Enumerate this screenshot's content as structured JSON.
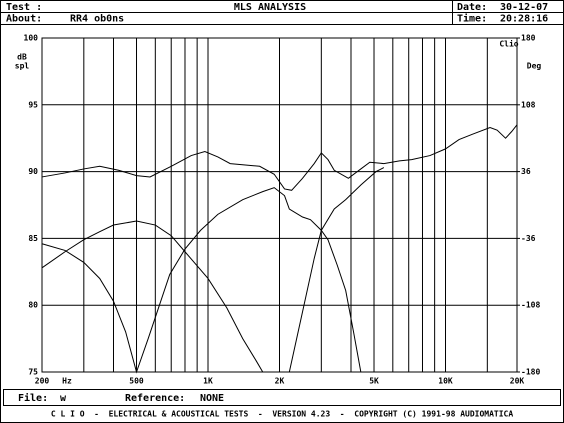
{
  "header": {
    "test_label": "Test :",
    "title": "MLS ANALYSIS",
    "date_label": "Date:",
    "date": "30-12-07",
    "about_label": "About:",
    "about": "RR4 ob0ns",
    "time_label": "Time:",
    "time": "20:28:16"
  },
  "chart_data": {
    "type": "line",
    "ylabel": [
      "dB",
      "spl"
    ],
    "y2label": "Deg",
    "xunit": "Hz",
    "brand": "Clio",
    "xscale": "log",
    "xlim": [
      200,
      20000
    ],
    "ylim": [
      75,
      100
    ],
    "y2lim": [
      -180,
      180
    ],
    "xticks": [
      200,
      500,
      {
        "value": 1000,
        "label": "1K"
      },
      {
        "value": 2000,
        "label": "2K"
      },
      {
        "value": 5000,
        "label": "5K"
      },
      {
        "value": 10000,
        "label": "10K"
      },
      {
        "value": 20000,
        "label": "20K"
      }
    ],
    "xminor": [
      300,
      400,
      600,
      700,
      800,
      900,
      3000,
      4000,
      6000,
      7000,
      8000,
      9000,
      15000
    ],
    "yticks": [
      100,
      95,
      90,
      85,
      80,
      75
    ],
    "y2ticks": [
      180,
      108,
      36,
      -36,
      -108,
      -180
    ],
    "grid": true,
    "series": [
      {
        "color": "#000000",
        "x": [
          200,
          250,
          300,
          350,
          420,
          500,
          570,
          700,
          850,
          970,
          1100,
          1240,
          1650,
          1900,
          2100,
          2250,
          2500,
          2800,
          3000,
          3200,
          3400,
          3900,
          4400,
          4800,
          5500,
          6400,
          7200,
          8600,
          10000,
          11400,
          13000,
          15400,
          16500,
          17900,
          19000,
          20000
        ],
        "values": [
          89.6,
          89.9,
          90.2,
          90.4,
          90.1,
          89.7,
          89.6,
          90.4,
          91.2,
          91.5,
          91.1,
          90.6,
          90.4,
          89.8,
          88.7,
          88.6,
          89.5,
          90.6,
          91.4,
          90.9,
          90.1,
          89.5,
          90.2,
          90.7,
          90.6,
          90.8,
          90.9,
          91.2,
          91.7,
          92.4,
          92.8,
          93.3,
          93.1,
          92.5,
          93.0,
          93.5
        ]
      },
      {
        "color": "#000000",
        "x": [
          200,
          250,
          300,
          350,
          400,
          450,
          500,
          560,
          690,
          800,
          930,
          1100,
          1400,
          1700,
          1900,
          2100,
          2200,
          2500,
          2700,
          3000,
          3200,
          3500,
          3800,
          4100,
          4400
        ],
        "values": [
          84.6,
          84.1,
          83.2,
          82.0,
          80.3,
          78.0,
          75.0,
          77.5,
          82.3,
          84.2,
          85.6,
          86.8,
          87.9,
          88.5,
          88.8,
          88.2,
          87.2,
          86.6,
          86.4,
          85.6,
          84.9,
          83.0,
          81.1,
          78.0,
          75.0
        ]
      },
      {
        "color": "#000000",
        "x": [
          200,
          250,
          300,
          350,
          400,
          500,
          600,
          700,
          800,
          1000,
          1200,
          1400,
          1600,
          1700
        ],
        "values": [
          82.8,
          84.0,
          84.9,
          85.5,
          86.0,
          86.3,
          86.0,
          85.2,
          84.0,
          82.0,
          79.8,
          77.5,
          75.8,
          75.0
        ]
      },
      {
        "color": "#000000",
        "x": [
          2200,
          2500,
          2800,
          3000,
          3400,
          3800,
          4400,
          5100,
          5500
        ],
        "values": [
          75.0,
          79.5,
          83.5,
          85.6,
          87.2,
          87.9,
          89.0,
          90.0,
          90.3
        ]
      }
    ]
  },
  "footer": {
    "file_label": "File:",
    "file": "w",
    "reference_label": "Reference:",
    "reference": "NONE",
    "credits": "C L I O  -  ELECTRICAL & ACOUSTICAL TESTS  -  VERSION 4.23  -  COPYRIGHT (C) 1991-98 AUDIOMATICA"
  }
}
